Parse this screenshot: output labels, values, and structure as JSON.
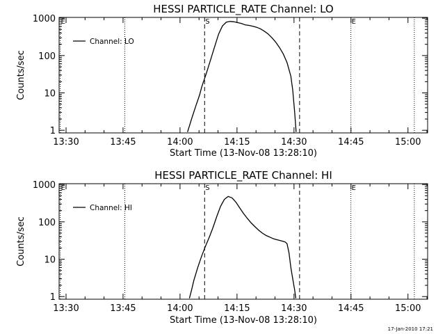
{
  "page": {
    "timestamp": "17-Jan-2010 17:21"
  },
  "chart_data": [
    {
      "type": "line",
      "title": "HESSI PARTICLE_RATE Channel: LO",
      "xlabel": "Start Time (13-Nov-08 13:28:10)",
      "ylabel": "Counts/sec",
      "yscale": "log",
      "ylim": [
        0.85,
        1050
      ],
      "xlim_minutes": [
        0,
        97
      ],
      "xticks": [
        {
          "m": 1.83,
          "label": "13:30"
        },
        {
          "m": 16.83,
          "label": "13:45"
        },
        {
          "m": 31.83,
          "label": "14:00"
        },
        {
          "m": 46.83,
          "label": "14:15"
        },
        {
          "m": 61.83,
          "label": "14:30"
        },
        {
          "m": 76.83,
          "label": "14:45"
        },
        {
          "m": 91.83,
          "label": "15:00"
        }
      ],
      "yticks": [
        {
          "v": 1,
          "label": "1"
        },
        {
          "v": 10,
          "label": "10"
        },
        {
          "v": 100,
          "label": "100"
        },
        {
          "v": 1000,
          "label": "1000"
        }
      ],
      "legend": {
        "label": "Channel: LO",
        "position": "top-left"
      },
      "markers": [
        {
          "m": 0.3,
          "label": "E",
          "style": "dotted"
        },
        {
          "m": 17.3,
          "label": "",
          "style": "dotted"
        },
        {
          "m": 38.3,
          "label": "S",
          "style": "dashed"
        },
        {
          "m": 63.3,
          "label": "",
          "style": "dashed"
        },
        {
          "m": 76.8,
          "label": "E",
          "style": "dotted"
        },
        {
          "m": 93.5,
          "label": "",
          "style": "dotted"
        }
      ],
      "series": [
        {
          "x": [
            33.8,
            34.3,
            35,
            36,
            37,
            37.5,
            38,
            38.5,
            39,
            40,
            41,
            42,
            43,
            44,
            45,
            46,
            47,
            48,
            49,
            50,
            51,
            52,
            53,
            54,
            55,
            56,
            57,
            58,
            59,
            60,
            61,
            61.5,
            62,
            62.4
          ],
          "y": [
            0.9,
            1.3,
            2.2,
            4.5,
            9,
            14,
            20,
            28,
            40,
            85,
            180,
            380,
            620,
            780,
            820,
            800,
            760,
            720,
            660,
            640,
            610,
            570,
            520,
            450,
            380,
            300,
            230,
            165,
            110,
            65,
            28,
            12,
            3,
            0.9
          ]
        }
      ]
    },
    {
      "type": "line",
      "title": "HESSI PARTICLE_RATE Channel: HI",
      "xlabel": "Start Time (13-Nov-08 13:28:10)",
      "ylabel": "Counts/sec",
      "yscale": "log",
      "ylim": [
        0.85,
        1050
      ],
      "xlim_minutes": [
        0,
        97
      ],
      "xticks": [
        {
          "m": 1.83,
          "label": "13:30"
        },
        {
          "m": 16.83,
          "label": "13:45"
        },
        {
          "m": 31.83,
          "label": "14:00"
        },
        {
          "m": 46.83,
          "label": "14:15"
        },
        {
          "m": 61.83,
          "label": "14:30"
        },
        {
          "m": 76.83,
          "label": "14:45"
        },
        {
          "m": 91.83,
          "label": "15:00"
        }
      ],
      "yticks": [
        {
          "v": 1,
          "label": "1"
        },
        {
          "v": 10,
          "label": "10"
        },
        {
          "v": 100,
          "label": "100"
        },
        {
          "v": 1000,
          "label": "1000"
        }
      ],
      "legend": {
        "label": "Channel: HI",
        "position": "top-left"
      },
      "markers": [
        {
          "m": 0.3,
          "label": "E",
          "style": "dotted"
        },
        {
          "m": 17.3,
          "label": "",
          "style": "dotted"
        },
        {
          "m": 38.3,
          "label": "S",
          "style": "dashed"
        },
        {
          "m": 63.3,
          "label": "",
          "style": "dashed"
        },
        {
          "m": 76.8,
          "label": "E",
          "style": "dotted"
        },
        {
          "m": 93.5,
          "label": "",
          "style": "dotted"
        }
      ],
      "series": [
        {
          "x": [
            34.3,
            34.8,
            35.5,
            36.5,
            37.5,
            38.5,
            39.5,
            40.5,
            41.5,
            42.5,
            43.5,
            44.5,
            45.5,
            46.5,
            47.5,
            48.5,
            49.5,
            50.5,
            51.5,
            52.5,
            53.5,
            54.5,
            55.5,
            56.5,
            57.5,
            58.5,
            59.5,
            60,
            60.5,
            61,
            61.5,
            62,
            62.3
          ],
          "y": [
            0.9,
            1.4,
            2.8,
            6,
            12,
            22,
            38,
            70,
            140,
            260,
            400,
            480,
            440,
            340,
            240,
            170,
            125,
            95,
            75,
            60,
            50,
            43,
            39,
            35,
            33,
            31,
            29,
            26,
            15,
            6,
            3,
            1.5,
            0.9
          ]
        }
      ]
    }
  ]
}
